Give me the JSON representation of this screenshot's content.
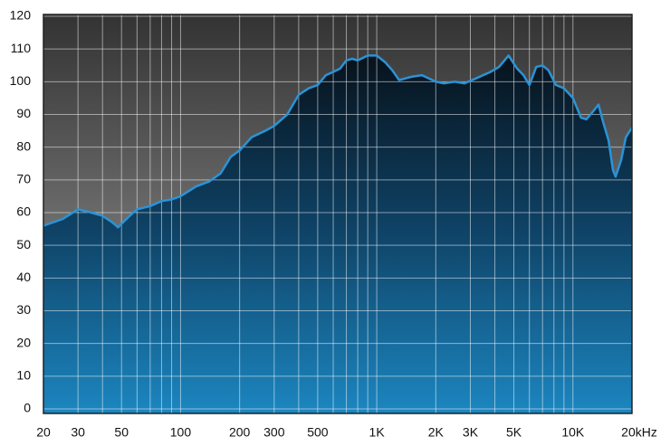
{
  "chart_data": {
    "type": "area",
    "log_x": true,
    "grid": true,
    "color": "#2b93d6",
    "x": [
      20,
      25,
      30,
      35,
      40,
      45,
      48,
      55,
      60,
      70,
      80,
      90,
      100,
      120,
      140,
      160,
      180,
      200,
      230,
      270,
      300,
      350,
      400,
      450,
      500,
      550,
      600,
      650,
      700,
      750,
      800,
      900,
      1000,
      1100,
      1200,
      1300,
      1500,
      1700,
      2000,
      2200,
      2500,
      2800,
      3200,
      3800,
      4200,
      4700,
      5200,
      5600,
      6000,
      6500,
      7000,
      7500,
      8200,
      9000,
      10000,
      11000,
      11700,
      12700,
      13500,
      14200,
      15200,
      16000,
      16500,
      17600,
      18600,
      20000
    ],
    "values": [
      56,
      58,
      61,
      60,
      59,
      57,
      55.5,
      59,
      61,
      62,
      63.5,
      64,
      65,
      68,
      69.5,
      72,
      77,
      79,
      83,
      85,
      86.5,
      90,
      96,
      98,
      99,
      102,
      103,
      104,
      106.5,
      107,
      106.5,
      108,
      108,
      106,
      103.5,
      100.5,
      101.5,
      102,
      100,
      99.5,
      100,
      99.5,
      101,
      103,
      104.5,
      108,
      104,
      102,
      99,
      104.5,
      105,
      103.5,
      99,
      98,
      95,
      89,
      88.5,
      91,
      93,
      88,
      82,
      73,
      71,
      76,
      83,
      86
    ],
    "xlim": [
      20,
      20000
    ],
    "ylim": [
      0,
      120
    ],
    "yticks": [
      0,
      10,
      20,
      30,
      40,
      50,
      60,
      70,
      80,
      90,
      100,
      110,
      120
    ],
    "xticks": [
      20,
      30,
      50,
      100,
      200,
      300,
      500,
      {
        "value": 1000,
        "label": "1K"
      },
      {
        "value": 2000,
        "label": "2K"
      },
      {
        "value": 3000,
        "label": "3K"
      },
      {
        "value": 5000,
        "label": "5K"
      },
      {
        "value": 10000,
        "label": "10K"
      },
      {
        "value": 20000,
        "label": "20kHz"
      }
    ],
    "xminor": [
      40,
      60,
      70,
      80,
      90,
      400,
      600,
      700,
      800,
      900,
      4000,
      6000,
      7000,
      8000,
      9000
    ]
  }
}
